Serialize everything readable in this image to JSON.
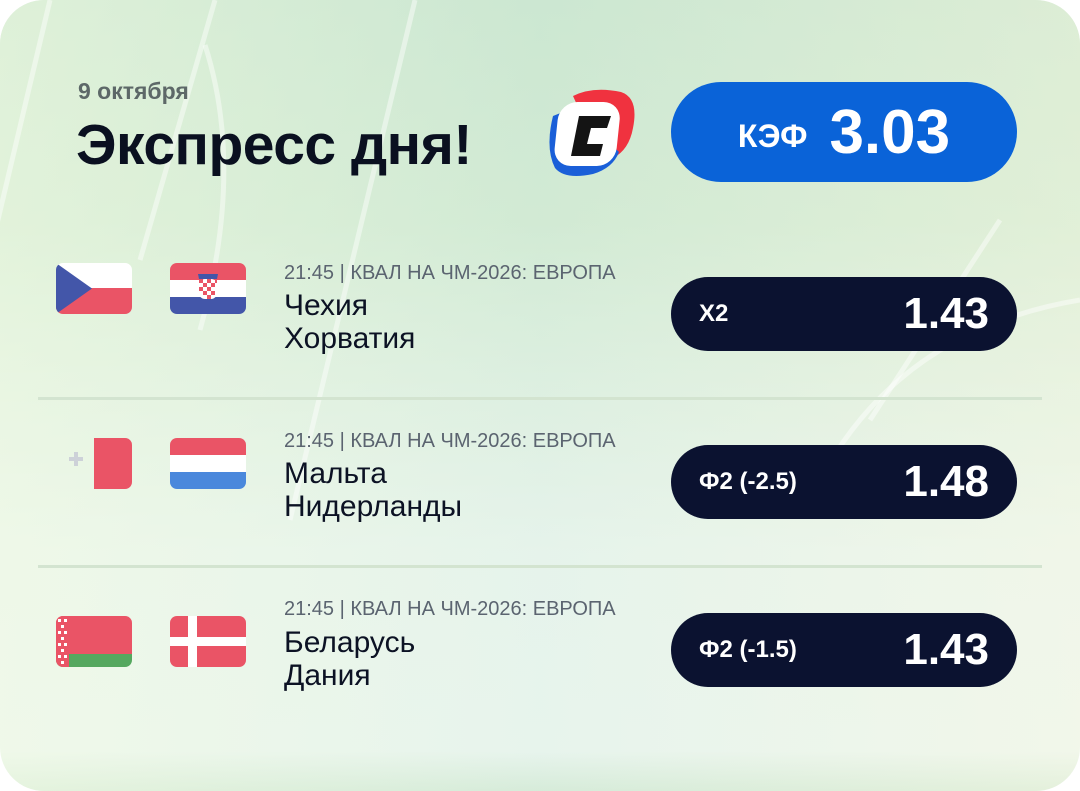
{
  "header": {
    "date": "9 октября",
    "title": "Экспресс дня!",
    "logo": "C",
    "total_label": "КЭФ",
    "total_odds": "3.03"
  },
  "colors": {
    "accent": "#0a63d8",
    "pill": "#0b1230",
    "logo_red": "#f0323f",
    "logo_blue": "#1a5fd8"
  },
  "matches": [
    {
      "meta": "21:45 | КВАЛ НА ЧМ-2026: ЕВРОПА",
      "home": "Чехия",
      "away": "Хорватия",
      "home_flag": "czech-flag",
      "away_flag": "croatia-flag",
      "market": "Х2",
      "odds": "1.43"
    },
    {
      "meta": "21:45 | КВАЛ НА ЧМ-2026: ЕВРОПА",
      "home": "Мальта",
      "away": "Нидерланды",
      "home_flag": "malta-flag",
      "away_flag": "netherlands-flag",
      "market": "Ф2 (-2.5)",
      "odds": "1.48"
    },
    {
      "meta": "21:45 | КВАЛ НА ЧМ-2026: ЕВРОПА",
      "home": "Беларусь",
      "away": "Дания",
      "home_flag": "belarus-flag",
      "away_flag": "denmark-flag",
      "market": "Ф2 (-1.5)",
      "odds": "1.43"
    }
  ]
}
